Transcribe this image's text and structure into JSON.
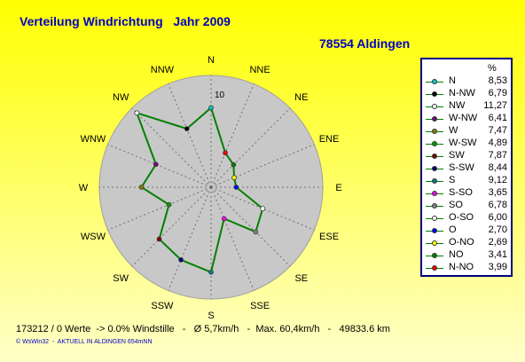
{
  "header": {
    "title": "Verteilung Windrichtung   Jahr 2009",
    "station": "78554 Aldingen"
  },
  "colors": {
    "background_top": "#ffff00",
    "title_text": "#0000c8",
    "rose_fill": "#c8c8c8",
    "rose_line": "#008000"
  },
  "chart_data": {
    "type": "radar",
    "title": "Verteilung Windrichtung   Jahr 2009",
    "unit": "%",
    "radial_range": [
      0,
      12
    ],
    "radial_tick_label": "10",
    "directions": [
      "N",
      "N-NW",
      "NW",
      "W-NW",
      "W",
      "W-SW",
      "SW",
      "S-SW",
      "S",
      "S-SO",
      "SO",
      "O-SO",
      "O",
      "O-NO",
      "NO",
      "N-NO"
    ],
    "compass_labels": [
      "N",
      "NNE",
      "NE",
      "ENE",
      "E",
      "ESE",
      "SE",
      "SSE",
      "S",
      "SSW",
      "SW",
      "WSW",
      "W",
      "WNW",
      "NW",
      "NNW"
    ],
    "values": [
      8.53,
      6.79,
      11.27,
      6.41,
      7.47,
      4.89,
      7.87,
      8.44,
      9.12,
      3.65,
      6.78,
      6.0,
      2.7,
      2.69,
      3.41,
      3.99
    ],
    "marker_colors": [
      "#00c8c8",
      "#000000",
      "#ffffff",
      "#800080",
      "#808000",
      "#00a000",
      "#800000",
      "#000080",
      "#008080",
      "#ff00ff",
      "#808080",
      "#ffffff",
      "#0000ff",
      "#ffff00",
      "#008000",
      "#ff0000"
    ]
  },
  "legend": {
    "unit": "%",
    "items": [
      {
        "name": "N",
        "value": "8,53"
      },
      {
        "name": "N-NW",
        "value": "6,79"
      },
      {
        "name": "NW",
        "value": "11,27"
      },
      {
        "name": "W-NW",
        "value": "6,41"
      },
      {
        "name": "W",
        "value": "7,47"
      },
      {
        "name": "W-SW",
        "value": "4,89"
      },
      {
        "name": "SW",
        "value": "7,87"
      },
      {
        "name": "S-SW",
        "value": "8,44"
      },
      {
        "name": "S",
        "value": "9,12"
      },
      {
        "name": "S-SO",
        "value": "3,65"
      },
      {
        "name": "SO",
        "value": "6,78"
      },
      {
        "name": "O-SO",
        "value": "6,00"
      },
      {
        "name": "O",
        "value": "2,70"
      },
      {
        "name": "O-NO",
        "value": "2,69"
      },
      {
        "name": "NO",
        "value": "3,41"
      },
      {
        "name": "N-NO",
        "value": "3,99"
      }
    ]
  },
  "footer": {
    "stats": "173212 / 0 Werte  -> 0.0% Windstille   -   Ø 5,7km/h   -  Max. 60,4km/h   -   49833.6 km",
    "copyright": "© WsWin32  -  AKTUELL IN ALDINGEN 654mNN"
  }
}
